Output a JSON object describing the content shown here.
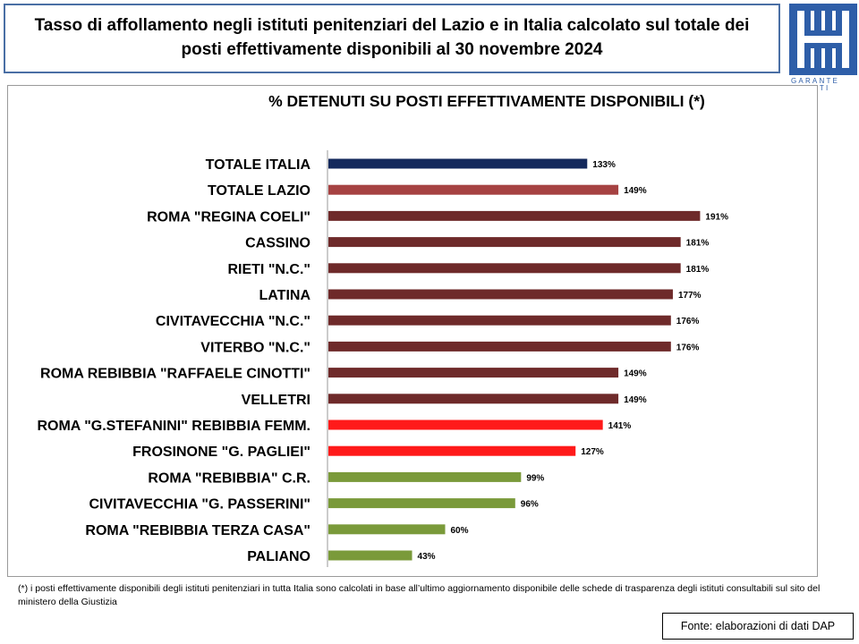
{
  "title": "Tasso di affollamento negli istituti penitenziari del Lazio e in Italia calcolato sul totale dei posti effettivamente disponibili al 30 novembre 2024",
  "logo": {
    "text": "GARANTE DIRITTI DETENUTI",
    "color": "#2e5ea8"
  },
  "chart_data": {
    "type": "bar",
    "orientation": "horizontal",
    "title": "% DETENUTI SU POSTI EFFETTIVAMENTE DISPONIBILI (*)",
    "categories": [
      "TOTALE ITALIA",
      "TOTALE LAZIO",
      "ROMA \"REGINA COELI\"",
      "CASSINO",
      "RIETI \"N.C.\"",
      "LATINA",
      "CIVITAVECCHIA \"N.C.\"",
      "VITERBO \"N.C.\"",
      "ROMA REBIBBIA \"RAFFAELE CINOTTI\"",
      "VELLETRI",
      "ROMA \"G.STEFANINI\" REBIBBIA FEMM.",
      "FROSINONE \"G. PAGLIEI\"",
      "ROMA \"REBIBBIA\" C.R.",
      "CIVITAVECCHIA \"G. PASSERINI\"",
      "ROMA \"REBIBBIA TERZA CASA\"",
      "PALIANO"
    ],
    "values": [
      133,
      149,
      191,
      181,
      181,
      177,
      176,
      176,
      149,
      149,
      141,
      127,
      99,
      96,
      60,
      43
    ],
    "value_labels": [
      "133%",
      "149%",
      "191%",
      "181%",
      "181%",
      "177%",
      "176%",
      "176%",
      "149%",
      "149%",
      "141%",
      "127%",
      "99%",
      "96%",
      "60%",
      "43%"
    ],
    "colors": [
      "#14295c",
      "#a64242",
      "#6e2a2a",
      "#6e2a2a",
      "#6e2a2a",
      "#6e2a2a",
      "#6e2a2a",
      "#6e2a2a",
      "#6e2a2a",
      "#6e2a2a",
      "#ff1a1a",
      "#ff1a1a",
      "#7a9a3a",
      "#7a9a3a",
      "#7a9a3a",
      "#7a9a3a"
    ],
    "xlim": [
      0,
      200
    ],
    "grid": false,
    "legend": "none"
  },
  "footnote": "(*) i posti effettivamente disponibili  degli istituti penitenziari in tutta Italia sono calcolati in base all’ultimo aggiornamento disponibile  delle schede di trasparenza degli istituti consultabili sul sito del ministero della Giustizia",
  "source": "Fonte: elaborazioni di dati DAP"
}
